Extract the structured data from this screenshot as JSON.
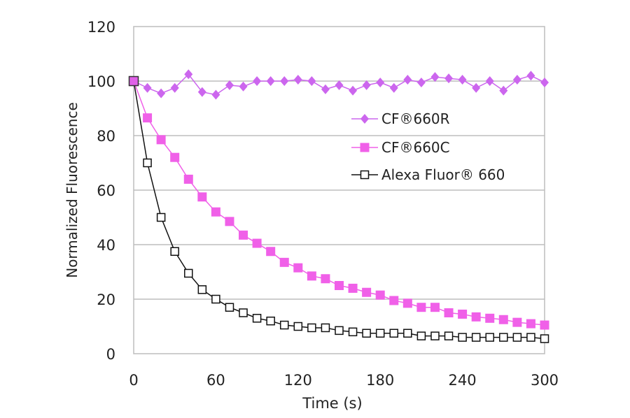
{
  "chart_data": {
    "type": "line",
    "title": "",
    "xlabel": "Time (s)",
    "ylabel": "Normalized  Fluorescence",
    "xlim": [
      0,
      300
    ],
    "ylim": [
      0,
      120
    ],
    "xticks": [
      0,
      60,
      120,
      180,
      240,
      300
    ],
    "yticks": [
      0,
      20,
      40,
      60,
      80,
      100,
      120
    ],
    "grid": "horizontal",
    "legend_placement": "center-right",
    "x": [
      0,
      10,
      20,
      30,
      40,
      50,
      60,
      70,
      80,
      90,
      100,
      110,
      120,
      130,
      140,
      150,
      160,
      170,
      180,
      190,
      200,
      210,
      220,
      230,
      240,
      250,
      260,
      270,
      280,
      290,
      300
    ],
    "series": [
      {
        "name": "CF®660R",
        "marker": "filled-diamond",
        "color": "#cc66ee",
        "values": [
          100,
          97.5,
          95.5,
          97.5,
          102.5,
          96,
          95,
          98.5,
          98,
          100,
          100,
          100,
          100.5,
          100,
          97,
          98.5,
          96.5,
          98.5,
          99.5,
          97.5,
          100.5,
          99.5,
          101.5,
          101,
          100.5,
          97.5,
          100,
          96.5,
          100.5,
          102,
          99.5
        ]
      },
      {
        "name": "CF®660C",
        "marker": "filled-square",
        "color": "#f060e8",
        "values": [
          100,
          86.5,
          78.5,
          72,
          64,
          57.5,
          52,
          48.5,
          43.5,
          40.5,
          37.5,
          33.5,
          31.5,
          28.5,
          27.5,
          25,
          24,
          22.5,
          21.5,
          19.5,
          18.5,
          17,
          17,
          15,
          14.5,
          13.5,
          13,
          12.5,
          11.5,
          11,
          10.5
        ]
      },
      {
        "name": "Alexa Fluor®  660",
        "marker": "open-square",
        "color": "#111111",
        "values": [
          100,
          70,
          50,
          37.5,
          29.5,
          23.5,
          20,
          17,
          15,
          13,
          12,
          10.5,
          10,
          9.5,
          9.5,
          8.5,
          8,
          7.5,
          7.5,
          7.5,
          7.5,
          6.5,
          6.5,
          6.5,
          6,
          6,
          6,
          6,
          6,
          6,
          5.5
        ]
      }
    ]
  }
}
